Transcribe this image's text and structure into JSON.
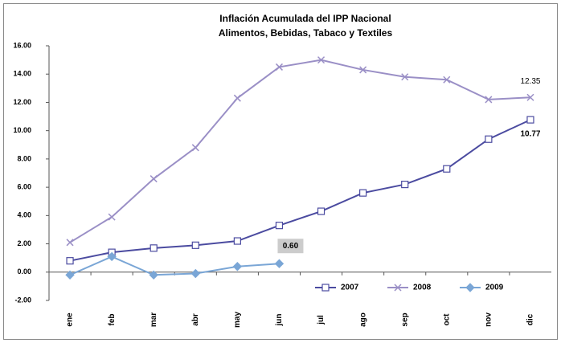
{
  "chart_data": {
    "type": "line",
    "title": "Inflación Acumulada del IPP Nacional",
    "subtitle": "Alimentos, Bebidas, Tabaco y Textiles",
    "categories": [
      "ene",
      "feb",
      "mar",
      "abr",
      "may",
      "jun",
      "jul",
      "ago",
      "sep",
      "oct",
      "nov",
      "dic"
    ],
    "series": [
      {
        "name": "2007",
        "color": "#4b4ba0",
        "values": [
          0.8,
          1.4,
          1.7,
          1.9,
          2.2,
          3.3,
          4.3,
          5.6,
          6.2,
          7.3,
          9.4,
          10.77
        ],
        "value_labels": [
          null,
          null,
          null,
          null,
          null,
          null,
          null,
          null,
          null,
          null,
          null,
          "10.77"
        ]
      },
      {
        "name": "2008",
        "color": "#9a8fc6",
        "values": [
          2.1,
          3.9,
          6.6,
          8.8,
          12.3,
          14.5,
          15.0,
          14.3,
          13.8,
          13.6,
          12.2,
          12.35
        ],
        "value_labels": [
          null,
          null,
          null,
          null,
          null,
          null,
          null,
          null,
          null,
          null,
          null,
          "12.35"
        ]
      },
      {
        "name": "2009",
        "color": "#7aa6d6",
        "values": [
          -0.2,
          1.1,
          -0.2,
          -0.1,
          0.4,
          0.6,
          null,
          null,
          null,
          null,
          null,
          null
        ],
        "value_labels": [
          null,
          null,
          null,
          null,
          null,
          "0.60",
          null,
          null,
          null,
          null,
          null,
          null
        ]
      }
    ],
    "ylim": [
      -2,
      16
    ],
    "yticks": [
      {
        "value": -2,
        "label": "-2.00"
      },
      {
        "value": 0,
        "label": "0.00"
      },
      {
        "value": 2,
        "label": "2.00"
      },
      {
        "value": 4,
        "label": "4.00"
      },
      {
        "value": 6,
        "label": "6.00"
      },
      {
        "value": 8,
        "label": "8.00"
      },
      {
        "value": 10,
        "label": "10.00"
      },
      {
        "value": 12,
        "label": "12.00"
      },
      {
        "value": 14,
        "label": "14.00"
      },
      {
        "value": 16,
        "label": "16.00"
      }
    ],
    "legend": "bottom-right"
  }
}
